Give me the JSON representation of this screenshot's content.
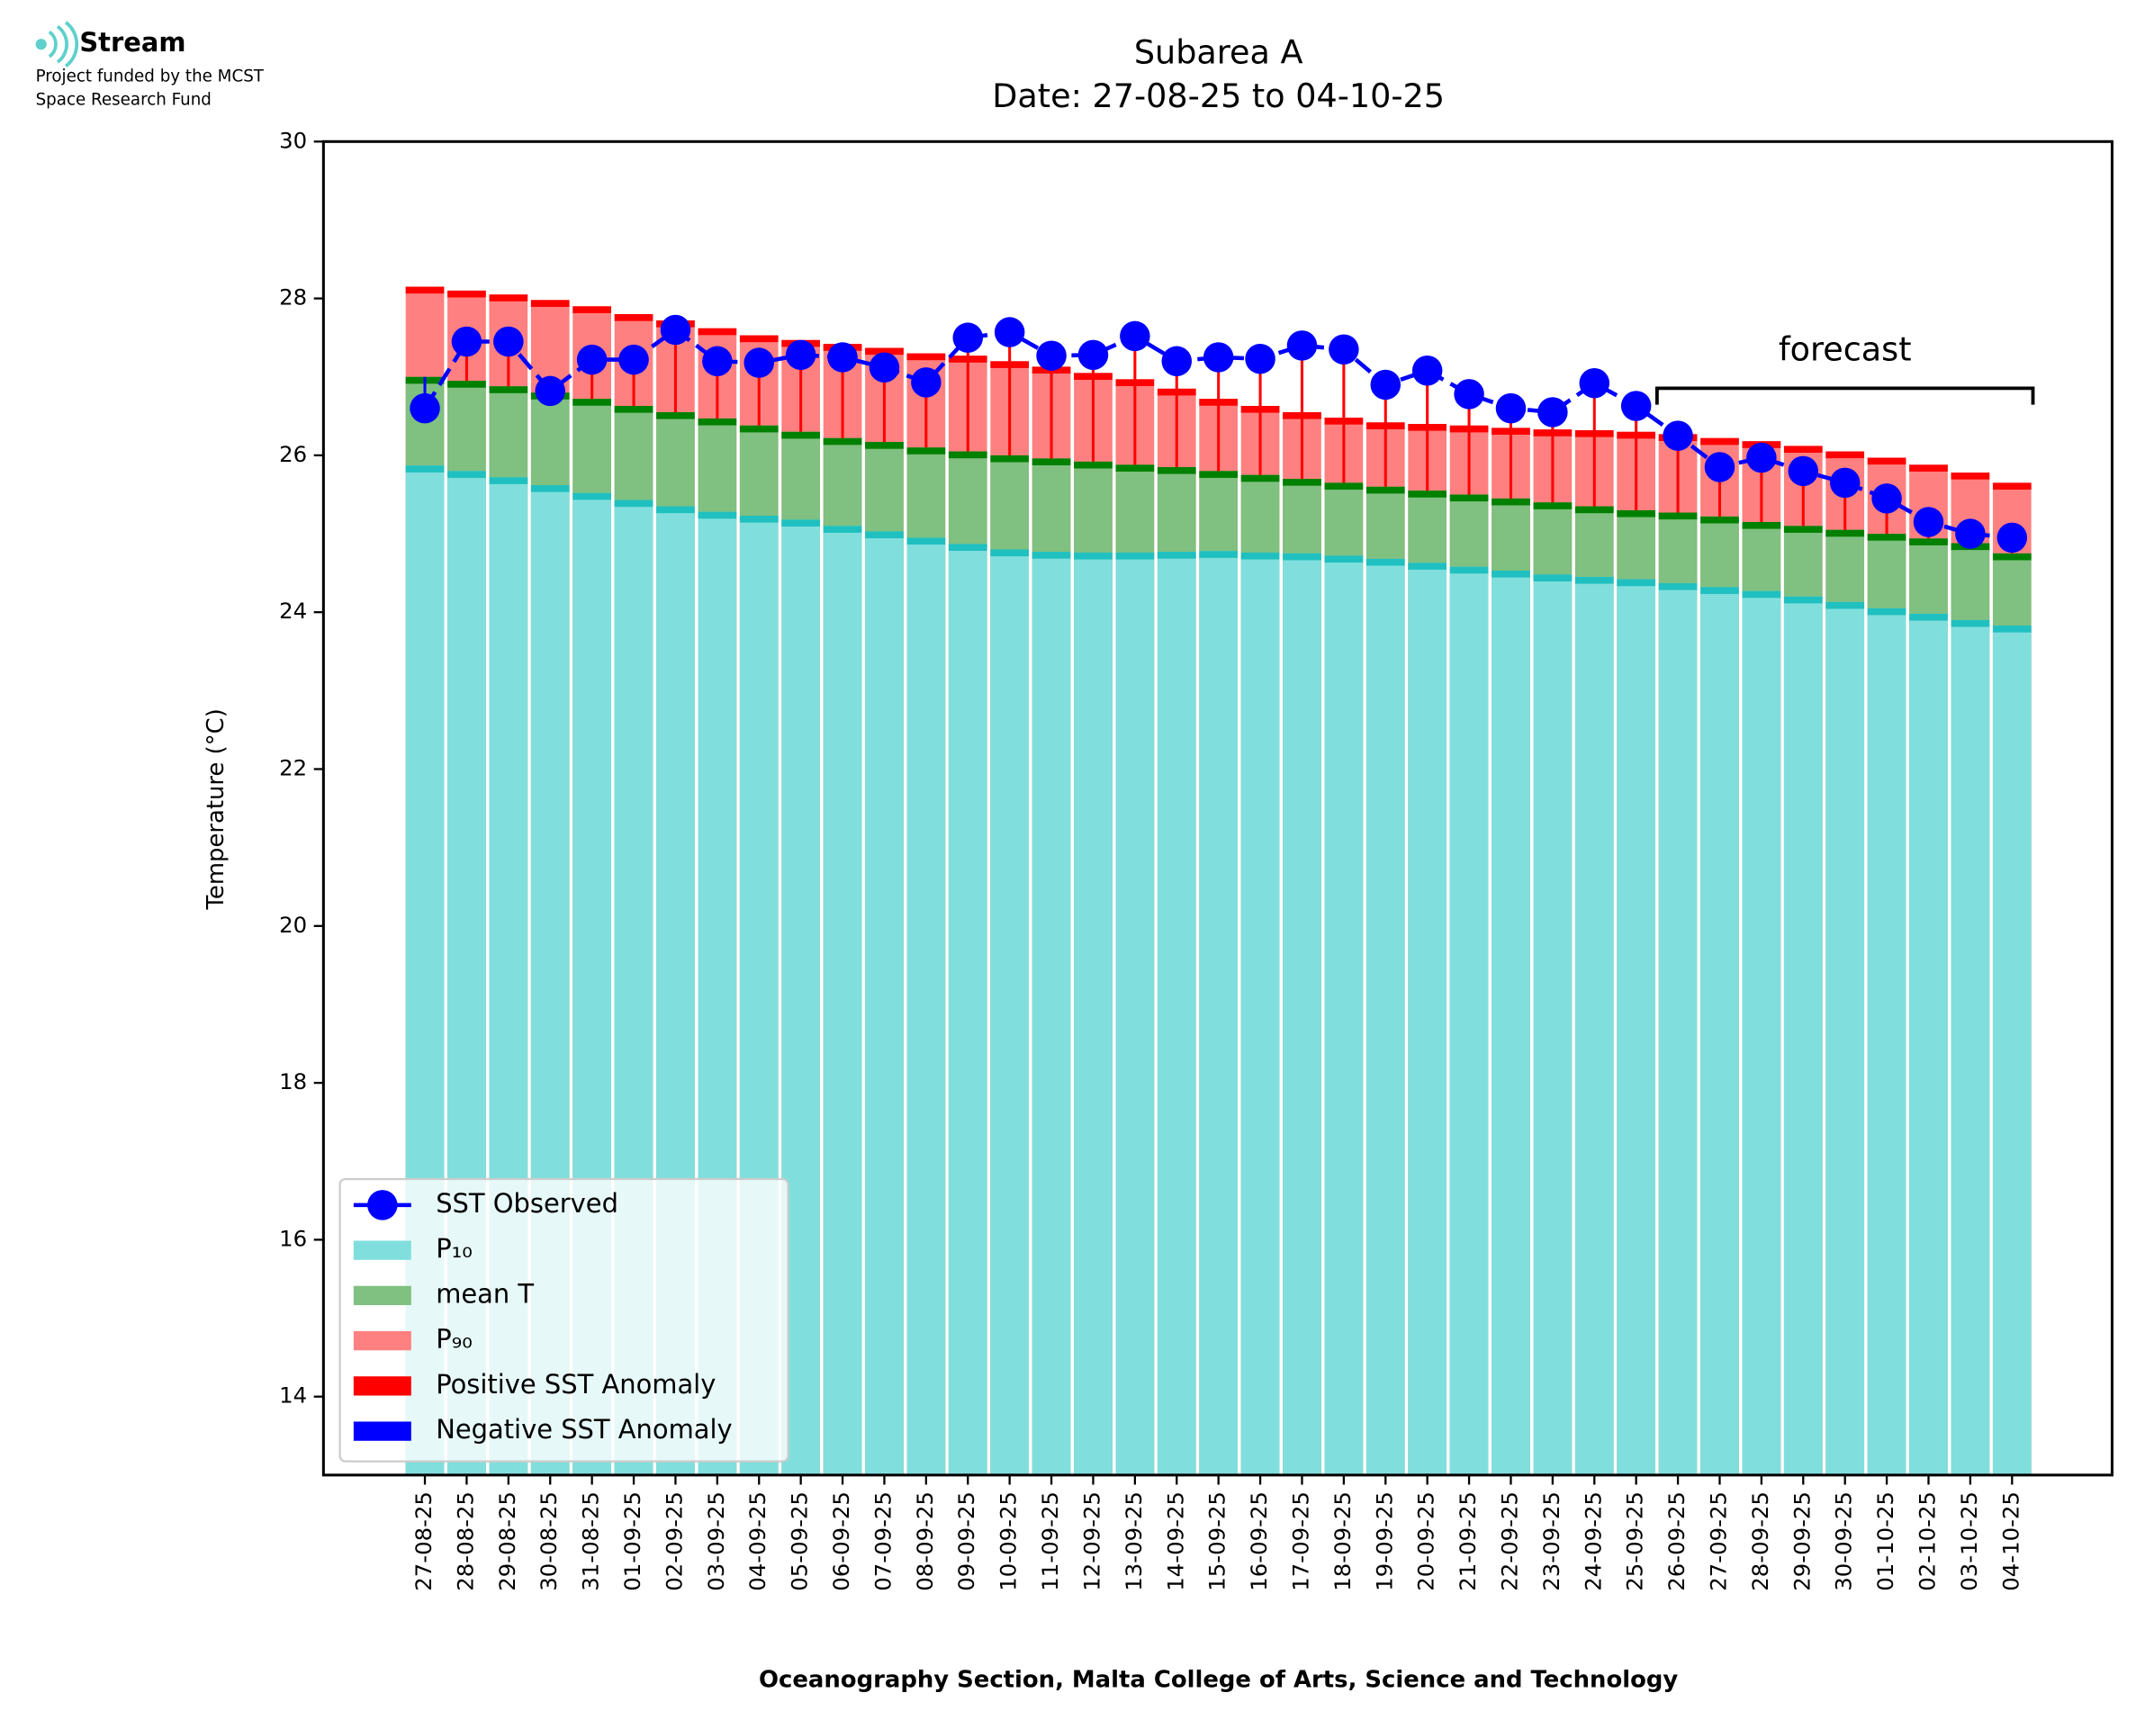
{
  "logo": {
    "name": "Stream",
    "line1": "Project funded by the MCST",
    "line2": "Space Research Fund"
  },
  "chart_data": {
    "type": "bar",
    "title": "Subarea A",
    "subtitle": "Date: 27-08-25 to 04-10-25",
    "x_label": "Oceanography Section, Malta College of Arts, Science and Technology",
    "y_label": "Temperature (°C)",
    "annotation": "forecast",
    "categories": [
      "27-08-25",
      "28-08-25",
      "29-08-25",
      "30-08-25",
      "31-08-25",
      "01-09-25",
      "02-09-25",
      "03-09-25",
      "04-09-25",
      "05-09-25",
      "06-09-25",
      "07-09-25",
      "08-09-25",
      "09-09-25",
      "10-09-25",
      "11-09-25",
      "12-09-25",
      "13-09-25",
      "14-09-25",
      "15-09-25",
      "16-09-25",
      "17-09-25",
      "18-09-25",
      "19-09-25",
      "20-09-25",
      "21-09-25",
      "22-09-25",
      "23-09-25",
      "24-09-25",
      "25-09-25",
      "26-09-25",
      "27-09-25",
      "28-09-25",
      "29-09-25",
      "30-09-25",
      "01-10-25",
      "02-10-25",
      "03-10-25",
      "04-10-25"
    ],
    "series": [
      {
        "name": "SST Observed",
        "color": "#0000ff",
        "values": [
          26.6,
          27.45,
          27.45,
          26.82,
          27.22,
          27.22,
          27.6,
          27.2,
          27.18,
          27.28,
          27.25,
          27.12,
          26.93,
          27.5,
          27.57,
          27.27,
          27.28,
          27.52,
          27.2,
          27.25,
          27.23,
          27.4,
          27.35,
          26.9,
          27.08,
          26.78,
          26.6,
          26.55,
          26.92,
          26.63,
          26.25,
          25.85,
          25.97,
          25.8,
          25.65,
          25.45,
          25.15,
          25.0,
          24.95
        ]
      },
      {
        "name": "P₁₀",
        "color": "#80dfdd",
        "edge": "#20c0c0",
        "values": [
          25.87,
          25.8,
          25.72,
          25.62,
          25.52,
          25.43,
          25.35,
          25.28,
          25.23,
          25.18,
          25.1,
          25.03,
          24.95,
          24.87,
          24.8,
          24.77,
          24.76,
          24.76,
          24.77,
          24.78,
          24.76,
          24.75,
          24.72,
          24.68,
          24.63,
          24.58,
          24.53,
          24.48,
          24.45,
          24.42,
          24.37,
          24.32,
          24.27,
          24.2,
          24.13,
          24.05,
          23.98,
          23.9,
          23.83
        ]
      },
      {
        "name": "mean T",
        "color": "#80c080",
        "edge": "#008000",
        "values": [
          27.0,
          26.95,
          26.88,
          26.8,
          26.72,
          26.63,
          26.55,
          26.47,
          26.38,
          26.3,
          26.22,
          26.17,
          26.1,
          26.05,
          26.0,
          25.96,
          25.92,
          25.88,
          25.85,
          25.8,
          25.75,
          25.7,
          25.65,
          25.6,
          25.55,
          25.5,
          25.45,
          25.4,
          25.35,
          25.3,
          25.27,
          25.22,
          25.15,
          25.1,
          25.05,
          25.0,
          24.94,
          24.88,
          24.75
        ]
      },
      {
        "name": "P₉₀",
        "color": "#ff8080",
        "edge": "#ff0000",
        "values": [
          28.15,
          28.1,
          28.05,
          27.98,
          27.9,
          27.8,
          27.72,
          27.62,
          27.53,
          27.47,
          27.42,
          27.37,
          27.3,
          27.27,
          27.2,
          27.13,
          27.05,
          26.97,
          26.85,
          26.72,
          26.63,
          26.55,
          26.48,
          26.42,
          26.4,
          26.38,
          26.35,
          26.33,
          26.32,
          26.3,
          26.27,
          26.22,
          26.18,
          26.12,
          26.05,
          25.97,
          25.88,
          25.78,
          25.65
        ]
      }
    ],
    "anomalies": [
      {
        "name": "Positive SST Anomaly",
        "color": "#ff0000"
      },
      {
        "name": "Negative SST Anomaly",
        "color": "#0000ff"
      }
    ],
    "ylim": [
      13,
      30
    ],
    "yticks": [
      14,
      16,
      18,
      20,
      22,
      24,
      26,
      28,
      30
    ]
  }
}
